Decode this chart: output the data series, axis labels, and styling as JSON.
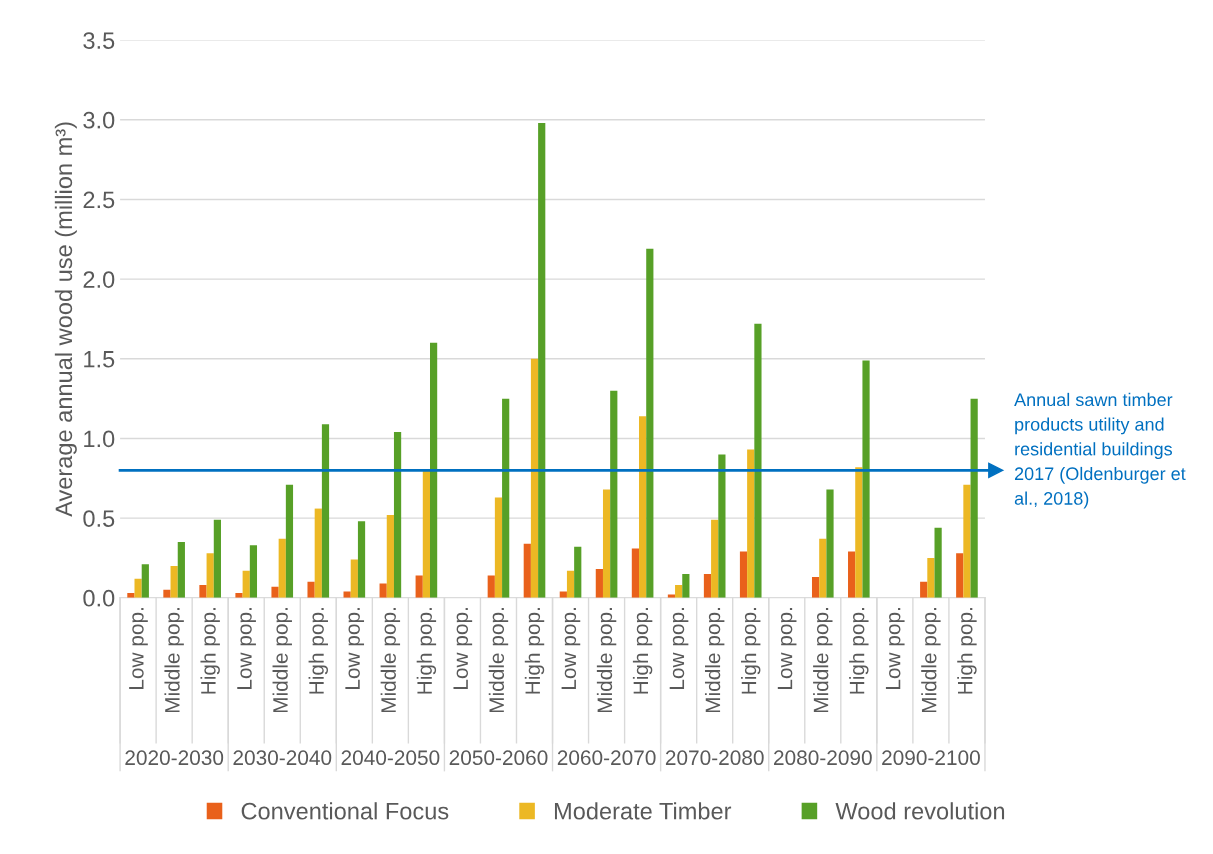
{
  "chart_data": {
    "type": "bar",
    "ylabel": "Average annual wood use (million m³)",
    "categories": [
      "Low pop.",
      "Middle pop.",
      "High pop.",
      "Low pop.",
      "Middle pop.",
      "High pop.",
      "Low pop.",
      "Middle pop.",
      "High pop.",
      "Low pop.",
      "Middle pop.",
      "High pop.",
      "Low pop.",
      "Middle pop.",
      "High pop.",
      "Low pop.",
      "Middle pop.",
      "High pop.",
      "Low pop.",
      "Middle pop.",
      "High pop.",
      "Low pop.",
      "Middle pop.",
      "High pop."
    ],
    "annotations": [
      "2020-2030",
      "2030-2040",
      "2040-2050",
      "2050-2060",
      "2060-2070",
      "2070-2080",
      "2080-2090",
      "2090-2100"
    ],
    "series": [
      {
        "name": "Conventional Focus",
        "color": "#e9611b",
        "values": [
          0.03,
          0.05,
          0.08,
          0.03,
          0.07,
          0.1,
          0.04,
          0.09,
          0.14,
          0,
          0.14,
          0.34,
          0.04,
          0.18,
          0.31,
          0.02,
          0.15,
          0.29,
          0,
          0.13,
          0.29,
          0,
          0.1,
          0.28
        ]
      },
      {
        "name": "Moderate Timber",
        "color": "#ecb824",
        "values": [
          0.12,
          0.2,
          0.28,
          0.17,
          0.37,
          0.56,
          0.24,
          0.52,
          0.8,
          0,
          0.63,
          1.5,
          0.17,
          0.68,
          1.14,
          0.08,
          0.49,
          0.93,
          0,
          0.37,
          0.82,
          0,
          0.25,
          0.71
        ]
      },
      {
        "name": "Wood revolution",
        "color": "#57a027",
        "values": [
          0.21,
          0.35,
          0.49,
          0.33,
          0.71,
          1.09,
          0.48,
          1.04,
          1.6,
          0,
          1.25,
          2.98,
          0.32,
          1.3,
          2.19,
          0.15,
          0.9,
          1.72,
          0,
          0.68,
          1.49,
          0,
          0.44,
          1.25
        ]
      }
    ],
    "ylim": [
      0,
      3.5
    ],
    "yticks": [
      {
        "value": 0,
        "label": "0.0"
      },
      {
        "value": 0.5,
        "label": "0.5"
      },
      {
        "value": 1,
        "label": "1.0"
      },
      {
        "value": 1.5,
        "label": "1.5"
      },
      {
        "value": 2,
        "label": "2.0"
      },
      {
        "value": 2.5,
        "label": "2.5"
      },
      {
        "value": 3,
        "label": "3.0"
      },
      {
        "value": 3.5,
        "label": "3.5"
      }
    ],
    "ref_lines": [
      {
        "axis": "y",
        "value": 0.8,
        "label": "Annual sawn timber products utility and residential buildings 2017 (Oldenburger et al., 2018)",
        "color": "#0070c0"
      }
    ],
    "grid": "y",
    "legend": "bottom"
  }
}
